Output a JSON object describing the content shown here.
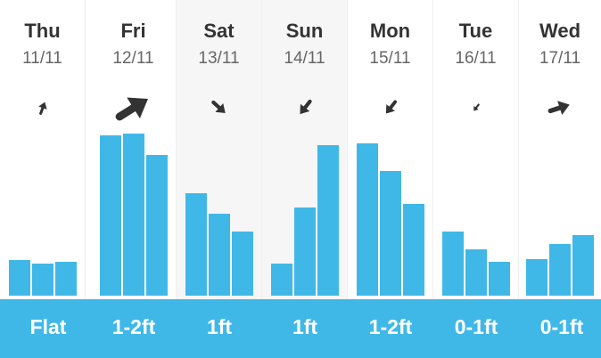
{
  "days": [
    {
      "day": "Thu",
      "date": "11/11",
      "size": "Flat",
      "direction": "north-northeast",
      "arrow_scale": 0.45,
      "wave_heights": [
        0.22,
        0.2,
        0.21
      ]
    },
    {
      "day": "Fri",
      "date": "12/11",
      "size": "1-2ft",
      "direction": "northeast",
      "arrow_scale": 1.25,
      "wave_heights": [
        1.0,
        1.01,
        0.88
      ]
    },
    {
      "day": "Sat",
      "date": "13/11",
      "size": "1ft",
      "direction": "southeast",
      "arrow_scale": 0.6,
      "wave_heights": [
        0.64,
        0.51,
        0.4
      ]
    },
    {
      "day": "Sun",
      "date": "14/11",
      "size": "1ft",
      "direction": "southwest",
      "arrow_scale": 0.6,
      "wave_heights": [
        0.2,
        0.55,
        0.94
      ]
    },
    {
      "day": "Mon",
      "date": "15/11",
      "size": "1-2ft",
      "direction": "southwest",
      "arrow_scale": 0.55,
      "wave_heights": [
        0.95,
        0.78,
        0.57
      ]
    },
    {
      "day": "Tue",
      "date": "16/11",
      "size": "0-1ft",
      "direction": "southwest",
      "arrow_scale": 0.3,
      "wave_heights": [
        0.4,
        0.29,
        0.21
      ]
    },
    {
      "day": "Wed",
      "date": "17/11",
      "size": "0-1ft",
      "direction": "east-northeast",
      "arrow_scale": 0.75,
      "wave_heights": [
        0.23,
        0.32,
        0.38
      ]
    }
  ],
  "colors": {
    "bar": "#3fb8e8",
    "arrow": "#333333",
    "shaded_day": "#f6f6f6"
  },
  "icons": {
    "direction": "wind-direction-arrow-icon"
  }
}
